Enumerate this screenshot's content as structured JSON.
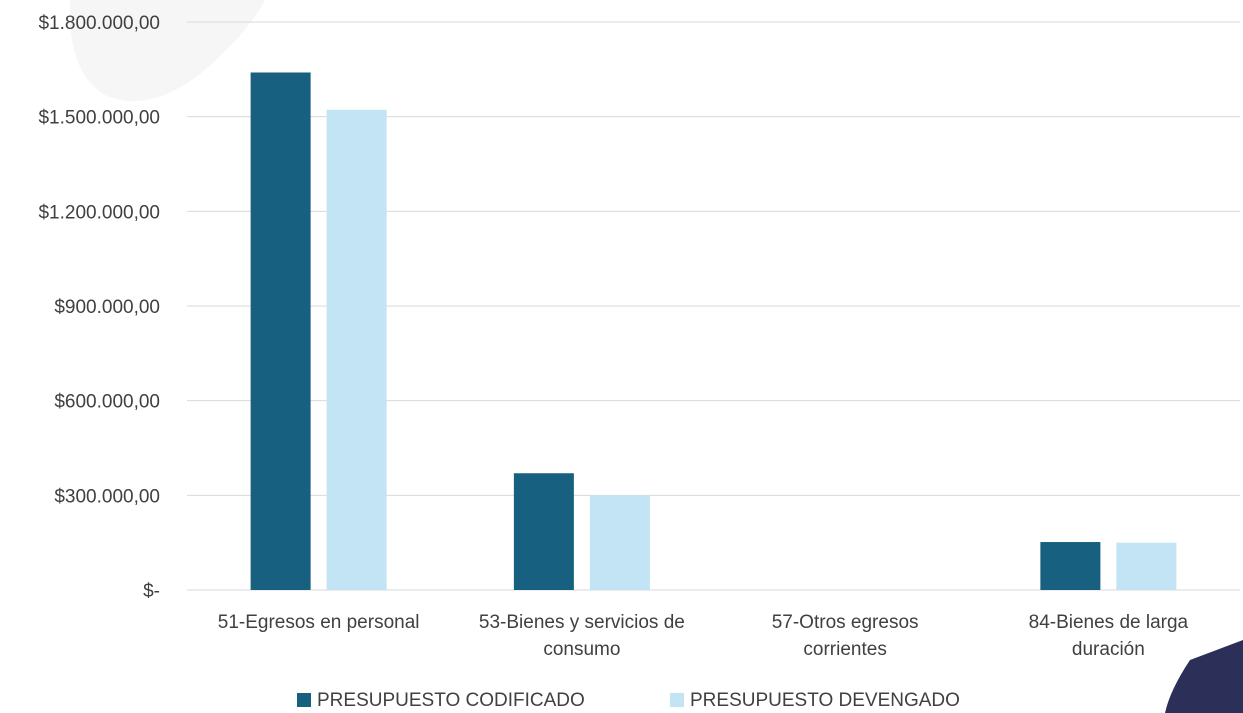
{
  "chart_data": {
    "type": "bar",
    "title": "",
    "xlabel": "",
    "ylabel": "",
    "categories": [
      "51-Egresos en personal",
      "53-Bienes y servicios de consumo",
      "57-Otros egresos corrientes",
      "84-Bienes de larga duración"
    ],
    "category_lines": [
      [
        "51-Egresos en personal"
      ],
      [
        "53-Bienes y servicios de",
        "consumo"
      ],
      [
        "57-Otros egresos",
        "corrientes"
      ],
      [
        "84-Bienes de larga",
        "duración"
      ]
    ],
    "series": [
      {
        "name": "PRESUPUESTO CODIFICADO",
        "color": "#17607f",
        "values": [
          1640000,
          370000,
          0,
          152000
        ]
      },
      {
        "name": "PRESUPUESTO DEVENGADO",
        "color": "#c3e4f4",
        "values": [
          1522000,
          300000,
          0,
          150000
        ]
      }
    ],
    "ylim": [
      0,
      1800000
    ],
    "y_ticks": [
      {
        "value": 0,
        "label": "$-"
      },
      {
        "value": 300000,
        "label": "$300.000,00"
      },
      {
        "value": 600000,
        "label": "$600.000,00"
      },
      {
        "value": 900000,
        "label": "$900.000,00"
      },
      {
        "value": 1200000,
        "label": "$1.200.000,00"
      },
      {
        "value": 1500000,
        "label": "$1.500.000,00"
      },
      {
        "value": 1800000,
        "label": "$1.800.000,00"
      }
    ],
    "grid": true,
    "legend_position": "bottom"
  },
  "decor": {
    "blob_color": "#f6f6f6",
    "corner_accent_color": "#2c2f57"
  }
}
